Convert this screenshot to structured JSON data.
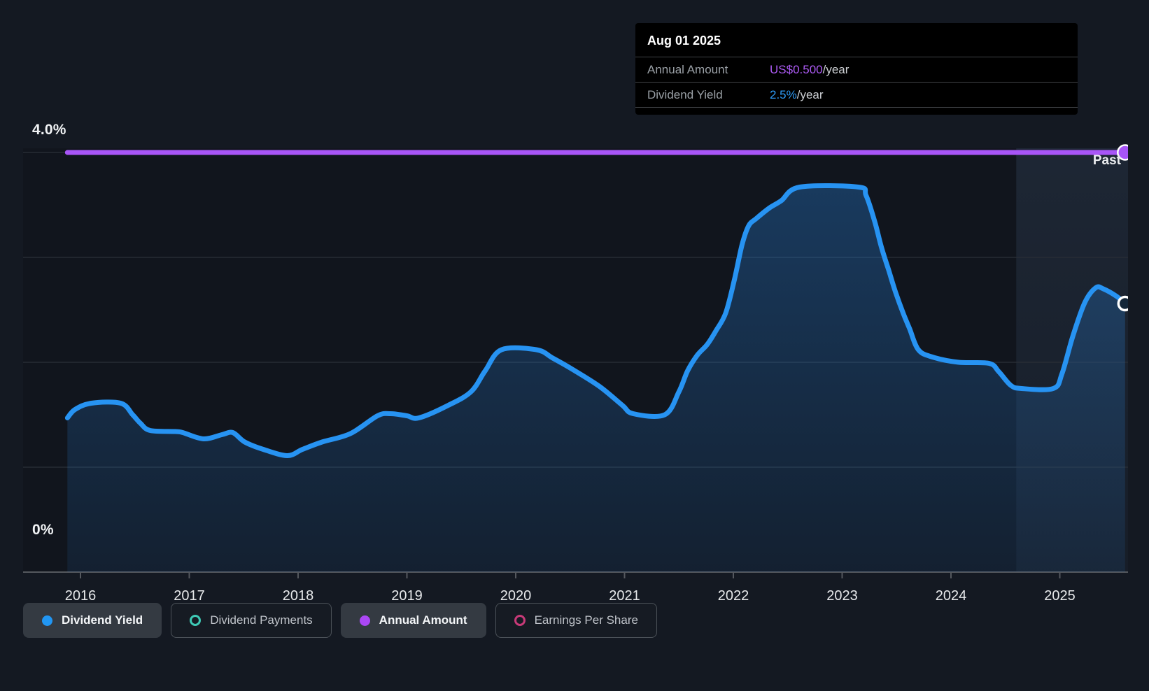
{
  "y_axis": {
    "label_top": "4.0%",
    "label_bottom": "0%"
  },
  "past_label": "Past",
  "tooltip": {
    "date": "Aug 01 2025",
    "rows": [
      {
        "label": "Annual Amount",
        "value": "US$0.500",
        "suffix": "/year",
        "color": "#ad5bf5"
      },
      {
        "label": "Dividend Yield",
        "value": "2.5%",
        "suffix": "/year",
        "color": "#2e9bf5"
      }
    ]
  },
  "legend": [
    {
      "label": "Dividend Yield",
      "swatch": "dot",
      "color": "#2196f3",
      "active": true
    },
    {
      "label": "Dividend Payments",
      "swatch": "ring",
      "color": "#3ec9b5",
      "active": false
    },
    {
      "label": "Annual Amount",
      "swatch": "dot",
      "color": "#ab47f5",
      "active": true
    },
    {
      "label": "Earnings Per Share",
      "swatch": "ring",
      "color": "#c73a78",
      "active": false
    }
  ],
  "chart_data": {
    "type": "area",
    "title": "Dividend yield history",
    "x_axis": {
      "ticks": [
        2016,
        2017,
        2018,
        2019,
        2020,
        2021,
        2022,
        2023,
        2024,
        2025
      ],
      "range": [
        2015.47,
        2025.63
      ]
    },
    "y_axis": {
      "unit": "%",
      "range": [
        0,
        4
      ],
      "gridlines_pct": [
        1,
        2,
        3,
        4
      ],
      "label_top": "4.0%",
      "label_bottom": "0%"
    },
    "grid": true,
    "legend_position": "bottom",
    "past_region": {
      "label": "Past",
      "start_year": 2024.6,
      "end_year": 2025.63
    },
    "annual_amount_line": {
      "name": "Annual Amount",
      "value_text": "US$0.500/year",
      "plotted_at_pct": 4.0,
      "color": "#a855f7",
      "start_year": 2015.88,
      "end_year": 2025.6
    },
    "series": [
      {
        "name": "Dividend Yield",
        "color": "#2793f2",
        "end_value_pct": 2.5,
        "points": [
          [
            2015.88,
            1.47
          ],
          [
            2015.95,
            1.55
          ],
          [
            2016.1,
            1.61
          ],
          [
            2016.37,
            1.61
          ],
          [
            2016.48,
            1.5
          ],
          [
            2016.55,
            1.42
          ],
          [
            2016.64,
            1.35
          ],
          [
            2016.87,
            1.34
          ],
          [
            2016.94,
            1.33
          ],
          [
            2017.13,
            1.27
          ],
          [
            2017.3,
            1.31
          ],
          [
            2017.4,
            1.33
          ],
          [
            2017.51,
            1.24
          ],
          [
            2017.68,
            1.17
          ],
          [
            2017.9,
            1.11
          ],
          [
            2018.04,
            1.17
          ],
          [
            2018.22,
            1.24
          ],
          [
            2018.48,
            1.32
          ],
          [
            2018.73,
            1.49
          ],
          [
            2018.85,
            1.51
          ],
          [
            2019.0,
            1.49
          ],
          [
            2019.11,
            1.47
          ],
          [
            2019.38,
            1.59
          ],
          [
            2019.59,
            1.72
          ],
          [
            2019.72,
            1.92
          ],
          [
            2019.87,
            2.12
          ],
          [
            2020.19,
            2.12
          ],
          [
            2020.34,
            2.04
          ],
          [
            2020.51,
            1.94
          ],
          [
            2020.77,
            1.77
          ],
          [
            2020.98,
            1.59
          ],
          [
            2021.08,
            1.51
          ],
          [
            2021.37,
            1.5
          ],
          [
            2021.5,
            1.72
          ],
          [
            2021.58,
            1.92
          ],
          [
            2021.67,
            2.07
          ],
          [
            2021.76,
            2.17
          ],
          [
            2021.84,
            2.3
          ],
          [
            2021.93,
            2.47
          ],
          [
            2022.01,
            2.79
          ],
          [
            2022.08,
            3.12
          ],
          [
            2022.14,
            3.3
          ],
          [
            2022.21,
            3.37
          ],
          [
            2022.33,
            3.47
          ],
          [
            2022.44,
            3.54
          ],
          [
            2022.61,
            3.67
          ],
          [
            2023.15,
            3.67
          ],
          [
            2023.22,
            3.59
          ],
          [
            2023.3,
            3.34
          ],
          [
            2023.36,
            3.1
          ],
          [
            2023.43,
            2.87
          ],
          [
            2023.49,
            2.67
          ],
          [
            2023.56,
            2.47
          ],
          [
            2023.62,
            2.32
          ],
          [
            2023.7,
            2.12
          ],
          [
            2023.83,
            2.05
          ],
          [
            2024.07,
            2.0
          ],
          [
            2024.35,
            1.99
          ],
          [
            2024.44,
            1.91
          ],
          [
            2024.55,
            1.78
          ],
          [
            2024.65,
            1.75
          ],
          [
            2024.94,
            1.75
          ],
          [
            2025.02,
            1.89
          ],
          [
            2025.12,
            2.25
          ],
          [
            2025.23,
            2.57
          ],
          [
            2025.33,
            2.71
          ],
          [
            2025.4,
            2.7
          ],
          [
            2025.52,
            2.63
          ],
          [
            2025.6,
            2.56
          ]
        ]
      }
    ],
    "colors": {
      "background": "#141922",
      "grid": "#272d35",
      "axis": "#54585e",
      "line_blue": "#2793f2",
      "line_purple": "#a855f7",
      "past_band": "#82b4f0"
    }
  }
}
